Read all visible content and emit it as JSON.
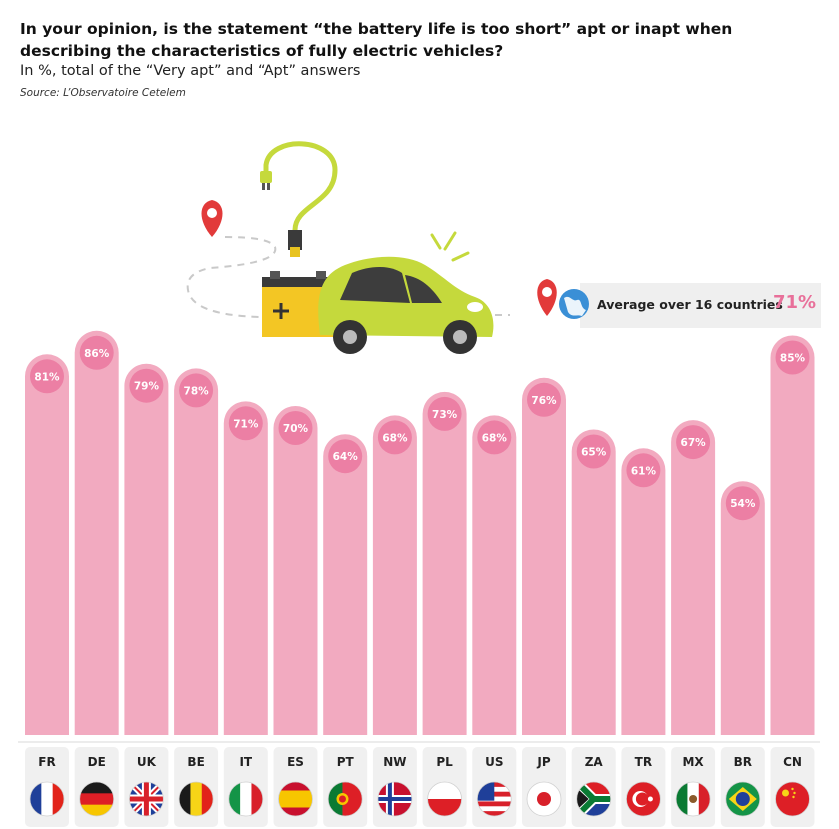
{
  "title": "In your opinion, is the statement “the battery life is too short” apt or inapt when describing the characteristics of fully electric vehicles?",
  "subtitle": "In %, total of the “Very apt” and “Apt” answers",
  "source": "Source: L’Observatoire Cetelem",
  "average": {
    "label": "Average over 16 countries",
    "value": "71%"
  },
  "colors": {
    "bar": "#f2aac0",
    "badge": "#ec7fa4",
    "accent": "#e8709a",
    "tile": "#f0f0f0"
  },
  "chart_data": {
    "type": "bar",
    "categories": [
      "FR",
      "DE",
      "UK",
      "BE",
      "IT",
      "ES",
      "PT",
      "NW",
      "PL",
      "US",
      "JP",
      "ZA",
      "TR",
      "MX",
      "BR",
      "CN"
    ],
    "values": [
      81,
      86,
      79,
      78,
      71,
      70,
      64,
      68,
      73,
      68,
      76,
      65,
      61,
      67,
      54,
      85
    ],
    "value_labels": [
      "81%",
      "86%",
      "79%",
      "78%",
      "71%",
      "70%",
      "64%",
      "68%",
      "73%",
      "68%",
      "76%",
      "65%",
      "61%",
      "67%",
      "54%",
      "85%"
    ],
    "ylim": [
      0,
      100
    ],
    "grid": false
  },
  "flags": [
    "flag-france-icon",
    "flag-germany-icon",
    "flag-uk-icon",
    "flag-belgium-icon",
    "flag-italy-icon",
    "flag-spain-icon",
    "flag-portugal-icon",
    "flag-norway-icon",
    "flag-poland-icon",
    "flag-usa-icon",
    "flag-japan-icon",
    "flag-south-africa-icon",
    "flag-turkey-icon",
    "flag-mexico-icon",
    "flag-brazil-icon",
    "flag-china-icon"
  ]
}
